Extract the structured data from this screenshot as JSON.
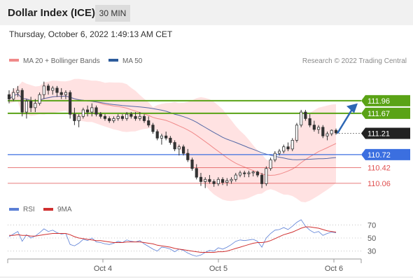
{
  "header": {
    "title": "Dollar Index (ICE)",
    "interval": "30 MIN"
  },
  "datetime": "Thursday, October 6, 2022 1:49:13 AM CET",
  "legend": {
    "items": [
      {
        "label": "MA 20 + Bollinger Bands",
        "color": "#f08a8a"
      },
      {
        "label": "MA 50",
        "color": "#2d5c9c"
      }
    ],
    "credit": "Research © 2022 Trading Central"
  },
  "colors": {
    "up": "#333333",
    "down": "#333333",
    "ma20": "#f08a8a",
    "band": "#ffd6d6",
    "ma50": "#5468a6",
    "resistance": "#5aa316",
    "support_blue": "#3b6fe0",
    "support_red": "#e05050",
    "arrow": "#2d67b4",
    "rsi": "#5b7fd6",
    "rsi_ma": "#d03030"
  },
  "chart_data": [
    {
      "type": "candlestick",
      "y_range": [
        109.8,
        112.7
      ],
      "x_ticks": [
        "Oct 4",
        "Oct 5",
        "Oct 6"
      ],
      "candles": [
        [
          112.1,
          112.2,
          111.9,
          112.0
        ],
        [
          112.0,
          112.25,
          111.95,
          112.15
        ],
        [
          112.15,
          112.3,
          112.05,
          112.2
        ],
        [
          112.2,
          112.25,
          111.6,
          111.7
        ],
        [
          111.7,
          112.0,
          111.55,
          111.95
        ],
        [
          111.95,
          112.05,
          111.7,
          111.8
        ],
        [
          111.8,
          112.0,
          111.7,
          111.9
        ],
        [
          111.9,
          112.15,
          111.85,
          112.1
        ],
        [
          112.1,
          112.4,
          112.0,
          112.3
        ],
        [
          112.3,
          112.35,
          112.1,
          112.2
        ],
        [
          112.2,
          112.3,
          112.1,
          112.25
        ],
        [
          112.25,
          112.3,
          112.05,
          112.15
        ],
        [
          112.15,
          112.25,
          112.0,
          112.1
        ],
        [
          112.1,
          112.2,
          112.0,
          112.15
        ],
        [
          112.15,
          112.2,
          111.55,
          111.65
        ],
        [
          111.65,
          111.8,
          111.4,
          111.5
        ],
        [
          111.5,
          111.65,
          111.35,
          111.6
        ],
        [
          111.6,
          111.8,
          111.55,
          111.75
        ],
        [
          111.75,
          111.85,
          111.6,
          111.7
        ],
        [
          111.7,
          111.9,
          111.6,
          111.8
        ],
        [
          111.8,
          111.85,
          111.6,
          111.65
        ],
        [
          111.65,
          111.7,
          111.55,
          111.6
        ],
        [
          111.6,
          111.65,
          111.5,
          111.55
        ],
        [
          111.55,
          111.6,
          111.45,
          111.5
        ],
        [
          111.5,
          111.6,
          111.45,
          111.55
        ],
        [
          111.55,
          111.65,
          111.5,
          111.6
        ],
        [
          111.6,
          111.65,
          111.5,
          111.55
        ],
        [
          111.55,
          111.7,
          111.5,
          111.65
        ],
        [
          111.65,
          111.7,
          111.55,
          111.6
        ],
        [
          111.6,
          111.7,
          111.5,
          111.55
        ],
        [
          111.55,
          111.7,
          111.5,
          111.6
        ],
        [
          111.6,
          111.65,
          111.45,
          111.5
        ],
        [
          111.5,
          111.6,
          111.35,
          111.4
        ],
        [
          111.4,
          111.45,
          111.2,
          111.25
        ],
        [
          111.25,
          111.3,
          111.05,
          111.1
        ],
        [
          111.1,
          111.2,
          110.95,
          111.15
        ],
        [
          111.15,
          111.25,
          111.05,
          111.1
        ],
        [
          111.1,
          111.15,
          110.95,
          111.0
        ],
        [
          111.0,
          111.05,
          110.8,
          110.85
        ],
        [
          110.85,
          110.95,
          110.7,
          110.9
        ],
        [
          110.9,
          110.95,
          110.7,
          110.75
        ],
        [
          110.75,
          110.85,
          110.55,
          110.6
        ],
        [
          110.6,
          110.65,
          110.35,
          110.4
        ],
        [
          110.4,
          110.5,
          110.15,
          110.2
        ],
        [
          110.2,
          110.3,
          110.0,
          110.1
        ],
        [
          110.1,
          110.2,
          109.95,
          110.15
        ],
        [
          110.15,
          110.25,
          110.05,
          110.1
        ],
        [
          110.1,
          110.15,
          109.98,
          110.05
        ],
        [
          110.05,
          110.2,
          110.0,
          110.15
        ],
        [
          110.15,
          110.2,
          110.02,
          110.08
        ],
        [
          110.08,
          110.18,
          110.0,
          110.12
        ],
        [
          110.12,
          110.2,
          110.05,
          110.15
        ],
        [
          110.15,
          110.3,
          110.1,
          110.25
        ],
        [
          110.25,
          110.35,
          110.2,
          110.3
        ],
        [
          110.3,
          110.35,
          110.2,
          110.28
        ],
        [
          110.28,
          110.35,
          110.2,
          110.3
        ],
        [
          110.3,
          110.35,
          110.22,
          110.32
        ],
        [
          110.32,
          110.35,
          110.2,
          110.25
        ],
        [
          110.25,
          110.3,
          109.95,
          110.05
        ],
        [
          110.05,
          110.45,
          110.0,
          110.4
        ],
        [
          110.4,
          110.65,
          110.35,
          110.6
        ],
        [
          110.6,
          110.8,
          110.55,
          110.75
        ],
        [
          110.75,
          110.85,
          110.7,
          110.8
        ],
        [
          110.8,
          110.95,
          110.75,
          110.9
        ],
        [
          110.9,
          111.0,
          110.8,
          110.85
        ],
        [
          110.85,
          111.1,
          110.8,
          111.05
        ],
        [
          111.05,
          111.45,
          111.0,
          111.4
        ],
        [
          111.4,
          111.75,
          111.35,
          111.7
        ],
        [
          111.7,
          111.75,
          111.5,
          111.55
        ],
        [
          111.55,
          111.65,
          111.35,
          111.4
        ],
        [
          111.4,
          111.5,
          111.25,
          111.3
        ],
        [
          111.3,
          111.4,
          111.2,
          111.35
        ],
        [
          111.35,
          111.4,
          111.1,
          111.15
        ],
        [
          111.15,
          111.25,
          111.05,
          111.2
        ],
        [
          111.2,
          111.3,
          111.15,
          111.28
        ],
        [
          111.28,
          111.32,
          111.18,
          111.22
        ]
      ],
      "levels": [
        {
          "value": 111.96,
          "label": "111.96",
          "kind": "resistance"
        },
        {
          "value": 111.67,
          "label": "111.67",
          "kind": "resistance"
        },
        {
          "value": 111.21,
          "label": "111.21",
          "kind": "current"
        },
        {
          "value": 110.72,
          "label": "110.72",
          "kind": "support_blue"
        },
        {
          "value": 110.42,
          "label": "110.42",
          "kind": "support_red"
        },
        {
          "value": 110.06,
          "label": "110.06",
          "kind": "support_red"
        }
      ],
      "projection": {
        "from_value": 111.21,
        "to_value": 111.9
      }
    },
    {
      "type": "line",
      "legend": [
        "RSI",
        "9MA"
      ],
      "y_ticks": [
        70,
        50,
        30
      ],
      "y_range": [
        20,
        80
      ],
      "rsi": [
        52,
        56,
        60,
        45,
        55,
        50,
        53,
        58,
        64,
        60,
        62,
        58,
        56,
        57,
        40,
        38,
        42,
        48,
        46,
        50,
        44,
        43,
        41,
        40,
        42,
        45,
        43,
        47,
        45,
        44,
        46,
        41,
        37,
        33,
        30,
        36,
        35,
        33,
        29,
        33,
        31,
        27,
        24,
        22,
        24,
        28,
        31,
        30,
        35,
        33,
        36,
        40,
        45,
        47,
        46,
        47,
        48,
        45,
        36,
        50,
        57,
        62,
        63,
        66,
        63,
        68,
        74,
        78,
        68,
        62,
        58,
        60,
        54,
        57,
        59,
        58
      ],
      "rsi_ma": [
        54,
        54,
        55,
        54,
        54,
        53,
        53,
        54,
        55,
        56,
        57,
        57,
        57,
        57,
        55,
        52,
        50,
        49,
        48,
        47,
        46,
        46,
        45,
        44,
        43,
        43,
        43,
        44,
        44,
        44,
        44,
        43,
        42,
        41,
        39,
        38,
        37,
        36,
        34,
        33,
        32,
        31,
        30,
        29,
        28,
        28,
        28,
        28,
        29,
        29,
        30,
        32,
        34,
        36,
        38,
        40,
        42,
        43,
        43,
        44,
        46,
        49,
        52,
        55,
        57,
        59,
        62,
        65,
        67,
        67,
        66,
        65,
        63,
        61,
        60,
        59
      ]
    }
  ]
}
